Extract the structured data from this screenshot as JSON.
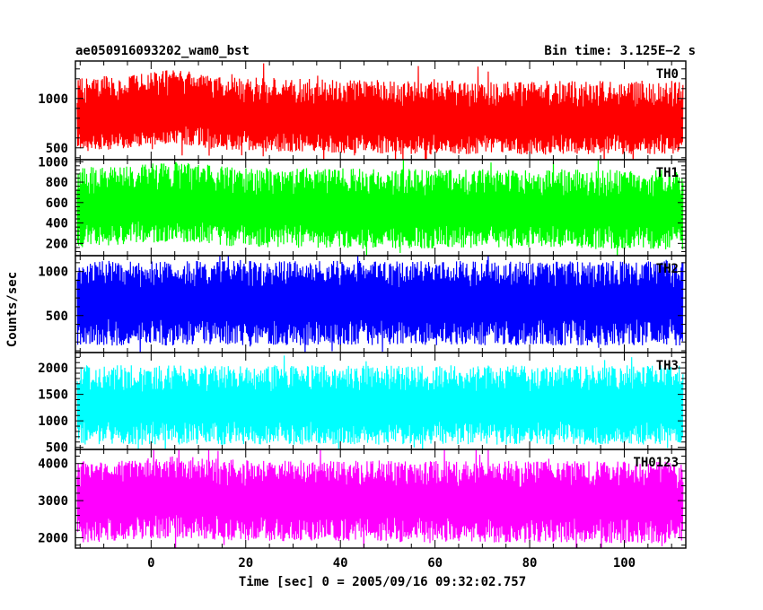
{
  "header": {
    "left_title": "ae050916093202_wam0_bst",
    "right_title": "Bin time: 3.125E−2 s"
  },
  "axes": {
    "ylabel": "Counts/sec",
    "xlabel": "Time [sec] 0 = 2005/09/16 09:32:02.757"
  },
  "chart_data": {
    "type": "line",
    "x_range": [
      -16,
      113
    ],
    "data_x_range": [
      -15.6,
      112.4
    ],
    "x_ticks": [
      0,
      20,
      40,
      60,
      80,
      100
    ],
    "panels": [
      {
        "name": "TH0",
        "color": "#ff0000",
        "ylim": [
          380,
          1380
        ],
        "y_ticks": [
          500,
          1000
        ],
        "envelope": {
          "center": [
            [
              -15.6,
              780
            ],
            [
              0,
              850
            ],
            [
              5,
              880
            ],
            [
              15,
              800
            ],
            [
              60,
              760
            ],
            [
              112.4,
              760
            ]
          ],
          "low_amp": 330,
          "high_amp": 420
        }
      },
      {
        "name": "TH1",
        "color": "#00ff00",
        "ylim": [
          80,
          1020
        ],
        "y_ticks": [
          200,
          400,
          600,
          800,
          1000
        ],
        "envelope": {
          "center": [
            [
              -15.6,
              520
            ],
            [
              5,
              580
            ],
            [
              20,
              520
            ],
            [
              112.4,
              500
            ]
          ],
          "low_amp": 360,
          "high_amp": 420
        }
      },
      {
        "name": "TH2",
        "color": "#0000ff",
        "ylim": [
          80,
          1180
        ],
        "y_ticks": [
          500,
          1000
        ],
        "envelope": {
          "center": [
            [
              -15.6,
              640
            ],
            [
              112.4,
              640
            ]
          ],
          "low_amp": 480,
          "high_amp": 480
        }
      },
      {
        "name": "TH3",
        "color": "#00ffff",
        "ylim": [
          460,
          2290
        ],
        "y_ticks": [
          500,
          1000,
          1500,
          2000
        ],
        "envelope": {
          "center": [
            [
              -15.6,
              1250
            ],
            [
              112.4,
              1250
            ]
          ],
          "low_amp": 700,
          "high_amp": 800
        }
      },
      {
        "name": "TH0123",
        "color": "#ff00ff",
        "ylim": [
          1720,
          4380
        ],
        "y_ticks": [
          2000,
          3000,
          4000
        ],
        "envelope": {
          "center": [
            [
              -15.6,
              2900
            ],
            [
              5,
              3050
            ],
            [
              20,
              2950
            ],
            [
              112.4,
              2900
            ]
          ],
          "low_amp": 1050,
          "high_amp": 1150
        }
      }
    ]
  }
}
